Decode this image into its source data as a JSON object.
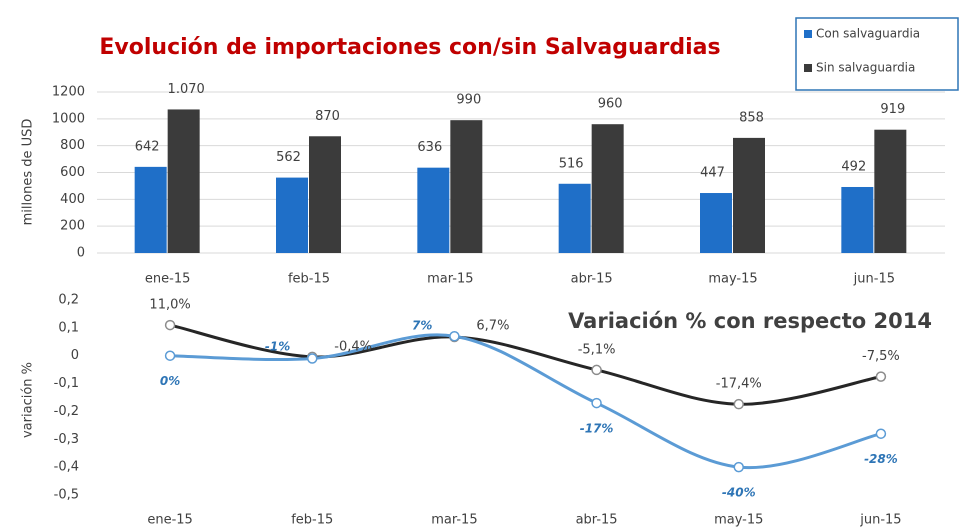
{
  "chart_data": [
    {
      "type": "bar",
      "title": "Evolución de importaciones con/sin Salvaguardias",
      "y_label": "millones de USD",
      "categories": [
        "ene-15",
        "feb-15",
        "mar-15",
        "abr-15",
        "may-15",
        "jun-15"
      ],
      "series": [
        {
          "name": "Con salvaguardia",
          "color": "#1f6fc8",
          "values": [
            642,
            562,
            636,
            516,
            447,
            492
          ]
        },
        {
          "name": "Sin salvaguardia",
          "color": "#3b3b3b",
          "values": [
            1070,
            870,
            990,
            960,
            858,
            919
          ],
          "value_labels": [
            "1.070",
            "870",
            "990",
            "960",
            "858",
            "919"
          ]
        }
      ],
      "ylim": [
        0,
        1200
      ],
      "yticks": [
        0,
        200,
        400,
        600,
        800,
        1000,
        1200
      ],
      "grid": true,
      "legend": "top-right"
    },
    {
      "type": "line",
      "title": "Variación % con respecto 2014",
      "y_label": "variación %",
      "categories": [
        "ene-15",
        "feb-15",
        "mar-15",
        "abr-15",
        "may-15",
        "jun-15"
      ],
      "series": [
        {
          "name": "Con salvaguardia",
          "color": "#5b9bd5",
          "values": [
            0,
            -0.01,
            0.07,
            -0.17,
            -0.4,
            -0.28
          ],
          "value_labels": [
            "0%",
            "-1%",
            "7%",
            "-17%",
            "-40%",
            "-28%"
          ]
        },
        {
          "name": "Sin salvaguardia",
          "color": "#262626",
          "values": [
            0.11,
            -0.004,
            0.067,
            -0.051,
            -0.174,
            -0.075
          ],
          "value_labels": [
            "11,0%",
            "-0,4%",
            "6,7%",
            "-5,1%",
            "-17,4%",
            "-7,5%"
          ]
        }
      ],
      "ylim": [
        -0.5,
        0.2
      ],
      "yticks": [
        {
          "value": -0.5,
          "label": "-0,5"
        },
        {
          "value": -0.4,
          "label": "-0,4"
        },
        {
          "value": -0.3,
          "label": "-0,3"
        },
        {
          "value": -0.2,
          "label": "-0,2"
        },
        {
          "value": -0.1,
          "label": "-0,1"
        },
        0,
        {
          "value": 0.1,
          "label": "0,1"
        },
        {
          "value": 0.2,
          "label": "0,2"
        }
      ],
      "grid": false
    }
  ]
}
